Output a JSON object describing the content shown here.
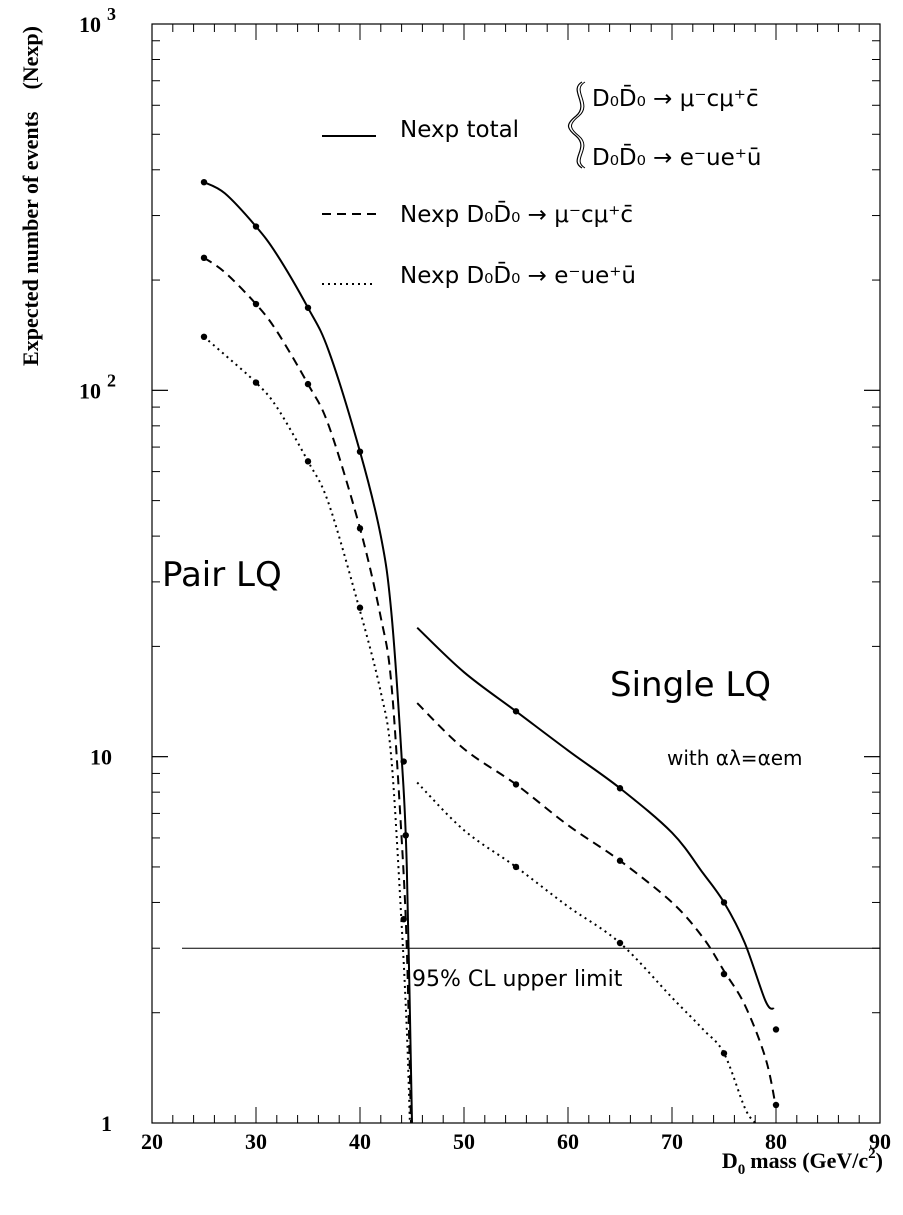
{
  "chart_data": {
    "type": "line",
    "title": "",
    "xlabel": "mass (GeV/c",
    "xlabel_symbol": "D",
    "xlabel_symbol_sub": "0",
    "xlabel_sup": "2",
    "xlabel_close": ")",
    "ylabel": "Expected number of events    (Nexp)",
    "x_scale": "linear",
    "y_scale": "log",
    "xlim": [
      20,
      90
    ],
    "ylim": [
      1,
      1000
    ],
    "x_ticks": [
      "20",
      "30",
      "40",
      "50",
      "60",
      "70",
      "80",
      "90"
    ],
    "y_ticks": [
      {
        "base": "1",
        "exp": ""
      },
      {
        "base": "10",
        "exp": ""
      },
      {
        "base": "10",
        "exp": "2"
      },
      {
        "base": "10",
        "exp": "3"
      }
    ],
    "legend_position": "top-right",
    "legend": {
      "total_label": "Nexp total",
      "channel_mu": "D₀D̄₀ → μ⁻cμ⁺c̄",
      "channel_e": "D₀D̄₀ → e⁻ue⁺ū",
      "mu_label": "Nexp D₀D̄₀ → μ⁻cμ⁺c̄",
      "e_label": "Nexp D₀D̄₀ → e⁻ue⁺ū"
    },
    "annotations": {
      "pair": "Pair LQ",
      "single": "Single LQ",
      "coupling": "with αλ=αem",
      "limit": "95% CL upper limit"
    },
    "limit_value": 3.0,
    "series": [
      {
        "key": "total",
        "style": "solid",
        "pair_curve": [
          [
            25,
            370
          ],
          [
            27,
            345
          ],
          [
            30,
            280
          ],
          [
            32,
            235
          ],
          [
            35,
            168
          ],
          [
            37,
            128
          ],
          [
            40,
            68
          ],
          [
            42,
            40
          ],
          [
            43,
            25
          ],
          [
            44,
            10
          ],
          [
            44.5,
            5
          ],
          [
            45,
            1
          ]
        ],
        "pair_points": [
          [
            25,
            370
          ],
          [
            30,
            280
          ],
          [
            35,
            168
          ],
          [
            40,
            68
          ],
          [
            44.2,
            9.7
          ],
          [
            44.4,
            6.1
          ]
        ],
        "single_curve": [
          [
            45.5,
            22.5
          ],
          [
            50,
            17
          ],
          [
            55,
            13.3
          ],
          [
            60,
            10.4
          ],
          [
            65,
            8.2
          ],
          [
            70,
            6.2
          ],
          [
            73,
            4.8
          ],
          [
            75,
            4.0
          ],
          [
            77,
            3.1
          ],
          [
            79,
            2.15
          ],
          [
            79.8,
            2.05
          ]
        ],
        "single_points": [
          [
            55,
            13.3
          ],
          [
            65,
            8.2
          ],
          [
            75,
            4.0
          ],
          [
            80,
            1.8
          ]
        ]
      },
      {
        "key": "mu",
        "style": "dashed",
        "pair_curve": [
          [
            25,
            230
          ],
          [
            27,
            210
          ],
          [
            30,
            172
          ],
          [
            32,
            145
          ],
          [
            35,
            104
          ],
          [
            37,
            80
          ],
          [
            40,
            42
          ],
          [
            42,
            24
          ],
          [
            43,
            16
          ],
          [
            44,
            6
          ],
          [
            44.5,
            3
          ],
          [
            44.9,
            1
          ]
        ],
        "pair_points": [
          [
            25,
            230
          ],
          [
            30,
            172
          ],
          [
            35,
            104
          ],
          [
            40,
            42
          ]
        ],
        "single_curve": [
          [
            45.5,
            14
          ],
          [
            50,
            10.5
          ],
          [
            55,
            8.4
          ],
          [
            60,
            6.5
          ],
          [
            65,
            5.2
          ],
          [
            70,
            4.0
          ],
          [
            73,
            3.2
          ],
          [
            75,
            2.6
          ],
          [
            77,
            2.1
          ],
          [
            79,
            1.5
          ],
          [
            80,
            1.1
          ]
        ],
        "single_points": [
          [
            55,
            8.4
          ],
          [
            65,
            5.2
          ],
          [
            75,
            2.55
          ],
          [
            80,
            1.12
          ]
        ]
      },
      {
        "key": "e",
        "style": "dotted",
        "pair_curve": [
          [
            25,
            140
          ],
          [
            27,
            125
          ],
          [
            30,
            105
          ],
          [
            32,
            90
          ],
          [
            35,
            64
          ],
          [
            37,
            49
          ],
          [
            40,
            25
          ],
          [
            42,
            15
          ],
          [
            43,
            10
          ],
          [
            44,
            3.5
          ],
          [
            44.5,
            1.8
          ],
          [
            44.8,
            1
          ]
        ],
        "pair_points": [
          [
            25,
            140
          ],
          [
            30,
            105
          ],
          [
            35,
            64
          ],
          [
            40,
            25.5
          ],
          [
            44.2,
            3.6
          ]
        ],
        "single_curve": [
          [
            45.5,
            8.5
          ],
          [
            50,
            6.3
          ],
          [
            55,
            5.0
          ],
          [
            60,
            3.9
          ],
          [
            65,
            3.1
          ],
          [
            70,
            2.2
          ],
          [
            73,
            1.8
          ],
          [
            75,
            1.55
          ],
          [
            77,
            1.1
          ],
          [
            78,
            1.0
          ]
        ],
        "single_points": [
          [
            55,
            5.0
          ],
          [
            65,
            3.1
          ],
          [
            75,
            1.55
          ]
        ]
      }
    ]
  }
}
